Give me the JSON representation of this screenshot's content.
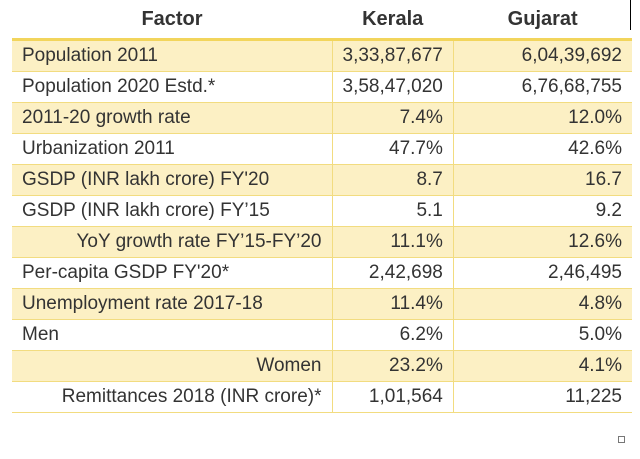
{
  "headers": [
    "Factor",
    "Kerala",
    "Gujarat"
  ],
  "rows": [
    {
      "factor": "Population 2011",
      "kerala": "3,33,87,677",
      "gujarat": "6,04,39,692",
      "align": "left"
    },
    {
      "factor": "Population 2020 Estd.*",
      "kerala": "3,58,47,020",
      "gujarat": "6,76,68,755",
      "align": "left"
    },
    {
      "factor": "2011-20 growth rate",
      "kerala": "7.4%",
      "gujarat": "12.0%",
      "align": "left"
    },
    {
      "factor": "Urbanization 2011",
      "kerala": "47.7%",
      "gujarat": "42.6%",
      "align": "left"
    },
    {
      "factor": "GSDP (INR lakh crore) FY'20",
      "kerala": "8.7",
      "gujarat": "16.7",
      "align": "left"
    },
    {
      "factor": "GSDP (INR lakh crore) FY’15",
      "kerala": "5.1",
      "gujarat": "9.2",
      "align": "left"
    },
    {
      "factor": "YoY growth rate FY’15-FY’20",
      "kerala": "11.1%",
      "gujarat": "12.6%",
      "align": "right"
    },
    {
      "factor": "Per-capita GSDP FY'20*",
      "kerala": "2,42,698",
      "gujarat": "2,46,495",
      "align": "left"
    },
    {
      "factor": "Unemployment rate 2017-18",
      "kerala": "11.4%",
      "gujarat": "4.8%",
      "align": "left"
    },
    {
      "factor": "Men",
      "kerala": "6.2%",
      "gujarat": "5.0%",
      "align": "left"
    },
    {
      "factor": "Women",
      "kerala": "23.2%",
      "gujarat": "4.1%",
      "align": "right"
    },
    {
      "factor": "Remittances 2018 (INR crore)*",
      "kerala": "1,01,564",
      "gujarat": "11,225",
      "align": "right"
    }
  ]
}
